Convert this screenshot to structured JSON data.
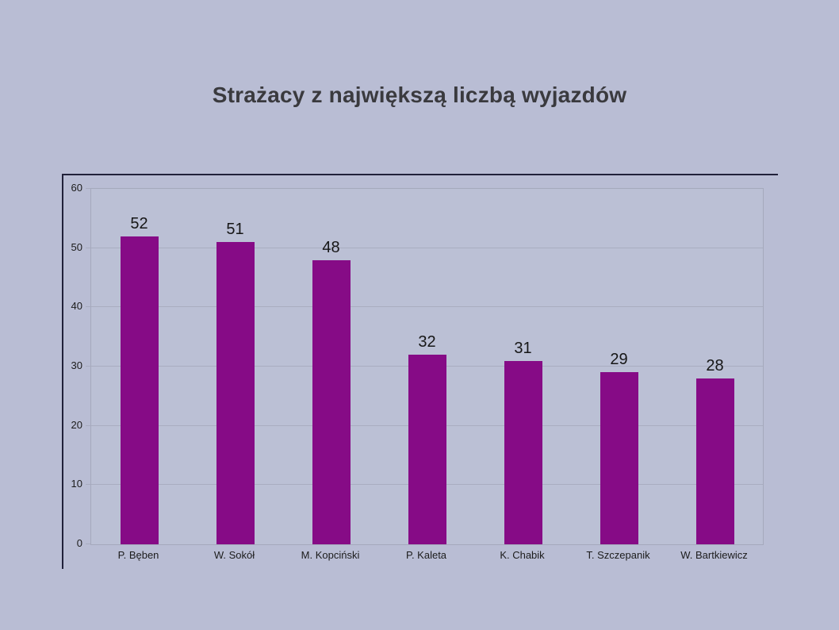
{
  "chart_data": {
    "type": "bar",
    "title": "Strażacy z największą liczbą wyjazdów",
    "categories": [
      "P. Bęben",
      "W. Sokół",
      "M. Kopciński",
      "P. Kaleta",
      "K. Chabik",
      "T. Szczepanik",
      "W. Bartkiewicz"
    ],
    "values": [
      52,
      51,
      48,
      32,
      31,
      29,
      28
    ],
    "data_labels": [
      "52",
      "51",
      "48",
      "32",
      "31",
      "29",
      "28"
    ],
    "xlabel": "",
    "ylabel": "",
    "ylim": [
      0,
      60
    ],
    "yticks": [
      0,
      10,
      20,
      30,
      40,
      50,
      60
    ],
    "grid": "horizontal-major",
    "legend": "none",
    "bar_color": "#860b86"
  },
  "colors": {
    "slide_bg": "#b9bdd4",
    "plot_bg": "#bbc0d5",
    "bar": "#860b86",
    "gridline": "#a9adc0",
    "plot_border": "#a5a9bc",
    "frame_border": "#21213a",
    "title_text": "#3a3a3e",
    "label_text": "#1c1c1c"
  }
}
